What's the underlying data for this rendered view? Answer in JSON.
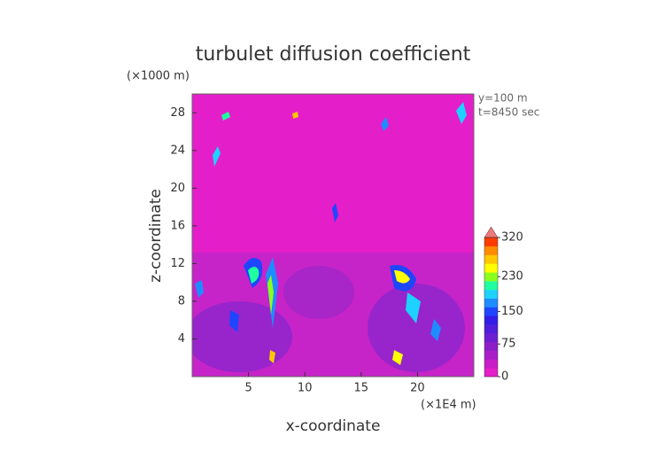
{
  "chart_data": {
    "type": "heatmap",
    "title": "turbulet diffusion coefficient",
    "x_label": "x-coordinate",
    "y_label": "z-coordinate",
    "x_unit": "(×1E4 m)",
    "y_unit": "(×1000 m)",
    "annotations": [
      "y=100 m",
      "t=8450 sec"
    ],
    "xlim": [
      0,
      25
    ],
    "xticks": [
      5,
      10,
      15,
      20
    ],
    "ylim": [
      0,
      30
    ],
    "yticks": [
      4,
      8,
      12,
      16,
      20,
      24,
      28
    ],
    "background_color": "#e41ec8",
    "colorbar": {
      "lim": [
        0,
        320
      ],
      "ticks": [
        0,
        75,
        150,
        230,
        320
      ],
      "extend": "max",
      "extend_color": "#f07878",
      "colors": [
        "#e41ec8",
        "#c81ec8",
        "#aa1ec8",
        "#8c1ec8",
        "#6e1ed2",
        "#501edc",
        "#321ee6",
        "#1e46ff",
        "#1e8cff",
        "#1ed2ff",
        "#1effa0",
        "#8cff1e",
        "#ffff00",
        "#ffc800",
        "#ff8c00",
        "#ff3c00"
      ]
    }
  }
}
